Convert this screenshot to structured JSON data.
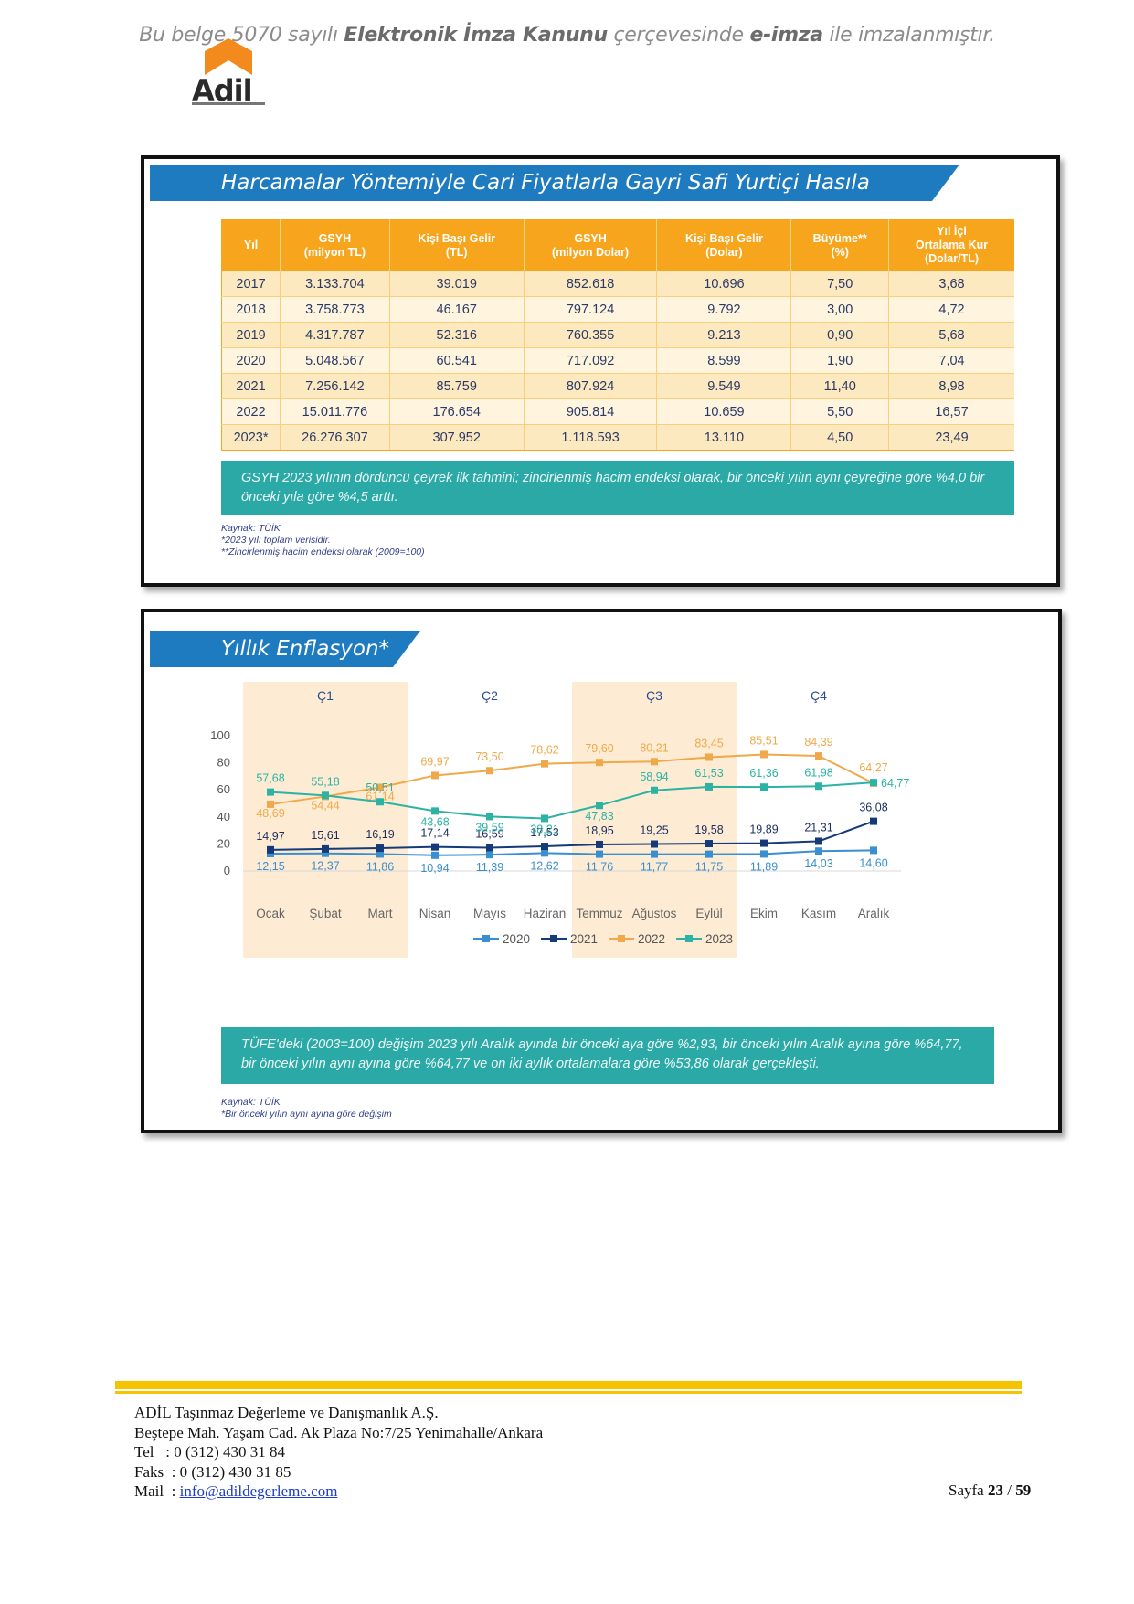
{
  "signature": {
    "pre": "Bu belge 5070 sayılı ",
    "law": "Elektronik İmza Kanunu",
    "mid": " çerçevesinde ",
    "eimza": "e-imza",
    "post": " ile imzalanmıştır."
  },
  "logo": {
    "text": "Adil"
  },
  "gdp_panel": {
    "title": "Harcamalar Yöntemiyle Cari Fiyatlarla Gayri Safi Yurtiçi Hasıla",
    "headers": [
      "Yıl",
      "GSYH\n(milyon TL)",
      "Kişi Başı Gelir\n(TL)",
      "GSYH\n(milyon Dolar)",
      "Kişi Başı Gelir\n(Dolar)",
      "Büyüme**\n(%)",
      "Yıl İçi\nOrtalama Kur\n(Dolar/TL)"
    ],
    "rows": [
      [
        "2017",
        "3.133.704",
        "39.019",
        "852.618",
        "10.696",
        "7,50",
        "3,68"
      ],
      [
        "2018",
        "3.758.773",
        "46.167",
        "797.124",
        "9.792",
        "3,00",
        "4,72"
      ],
      [
        "2019",
        "4.317.787",
        "52.316",
        "760.355",
        "9.213",
        "0,90",
        "5,68"
      ],
      [
        "2020",
        "5.048.567",
        "60.541",
        "717.092",
        "8.599",
        "1,90",
        "7,04"
      ],
      [
        "2021",
        "7.256.142",
        "85.759",
        "807.924",
        "9.549",
        "11,40",
        "8,98"
      ],
      [
        "2022",
        "15.011.776",
        "176.654",
        "905.814",
        "10.659",
        "5,50",
        "16,57"
      ],
      [
        "2023*",
        "26.276.307",
        "307.952",
        "1.118.593",
        "13.110",
        "4,50",
        "23,49"
      ]
    ],
    "note": "GSYH 2023 yılının dördüncü çeyrek ilk tahmini; zincirlenmiş hacim endeksi olarak, bir önceki yılın aynı çeyreğine göre %4,0 bir önceki yıla göre %4,5 arttı.",
    "sources": [
      "Kaynak: TÜİK",
      "*2023 yılı toplam verisidir.",
      "**Zincirlenmiş hacim endeksi olarak (2009=100)"
    ]
  },
  "inflation_panel": {
    "title": "Yıllık Enflasyon*",
    "note": "TÜFE'deki (2003=100) değişim 2023 yılı Aralık ayında bir önceki aya göre %2,93, bir önceki yılın Aralık ayına göre %64,77, bir önceki yılın aynı ayına göre %64,77 ve on iki aylık ortalamalara göre %53,86 olarak gerçekleşti.",
    "sources": [
      "Kaynak: TÜİK",
      "*Bir önceki yılın aynı ayına göre değişim"
    ]
  },
  "chart_data": {
    "type": "line",
    "title": "Yıllık Enflasyon*",
    "categories": [
      "Ocak",
      "Şubat",
      "Mart",
      "Nisan",
      "Mayıs",
      "Haziran",
      "Temmuz",
      "Ağustos",
      "Eylül",
      "Ekim",
      "Kasım",
      "Aralık"
    ],
    "quarters": [
      "Ç1",
      "Ç2",
      "Ç3",
      "Ç4"
    ],
    "ylim": [
      0,
      100
    ],
    "yticks": [
      0,
      20,
      40,
      60,
      80,
      100
    ],
    "legend_position": "bottom",
    "series": [
      {
        "name": "2020",
        "color": "#3a8fd0",
        "values": [
          12.15,
          12.37,
          11.86,
          10.94,
          11.39,
          12.62,
          11.76,
          11.77,
          11.75,
          11.89,
          14.03,
          14.6
        ],
        "labels": [
          "12,15",
          "12,37",
          "11,86",
          "10,94",
          "11,39",
          "12,62",
          "11,76",
          "11,77",
          "11,75",
          "11,89",
          "14,03",
          "14,60"
        ]
      },
      {
        "name": "2021",
        "color": "#143a78",
        "values": [
          14.97,
          15.61,
          16.19,
          17.14,
          16.59,
          17.53,
          18.95,
          19.25,
          19.58,
          19.89,
          21.31,
          36.08
        ],
        "labels": [
          "14,97",
          "15,61",
          "16,19",
          "17,14",
          "16,59",
          "17,53",
          "18,95",
          "19,25",
          "19,58",
          "19,89",
          "21,31",
          "36,08"
        ]
      },
      {
        "name": "2022",
        "color": "#f0a94a",
        "values": [
          48.69,
          54.44,
          61.14,
          69.97,
          73.5,
          78.62,
          79.6,
          80.21,
          83.45,
          85.51,
          84.39,
          64.27
        ],
        "labels": [
          "48,69",
          "54,44",
          "61,14",
          "69,97",
          "73,50",
          "78,62",
          "79,60",
          "80,21",
          "83,45",
          "85,51",
          "84,39",
          "64,27"
        ]
      },
      {
        "name": "2023",
        "color": "#2cb3a4",
        "values": [
          57.68,
          55.18,
          50.51,
          43.68,
          39.59,
          38.21,
          47.83,
          58.94,
          61.53,
          61.36,
          61.98,
          64.77
        ],
        "labels": [
          "57,68",
          "55,18",
          "50,51",
          "43,68",
          "39,59",
          "38,21",
          "47,83",
          "58,94",
          "61,53",
          "61,36",
          "61,98",
          "64,77"
        ]
      }
    ]
  },
  "footer": {
    "company": "ADİL Taşınmaz Değerleme ve Danışmanlık A.Ş.",
    "address": "Beştepe Mah. Yaşam Cad. Ak Plaza No:7/25 Yenimahalle/Ankara",
    "tel_label": "Tel   : ",
    "tel": "0 (312) 430 31 84",
    "fax_label": "Faks  : ",
    "fax": "0 (312) 430 31 85",
    "mail_label": "Mail  : ",
    "mail": "info@adildegerleme.com",
    "page_label": "Sayfa ",
    "page_current": "23",
    "page_sep": " / ",
    "page_total": "59"
  }
}
